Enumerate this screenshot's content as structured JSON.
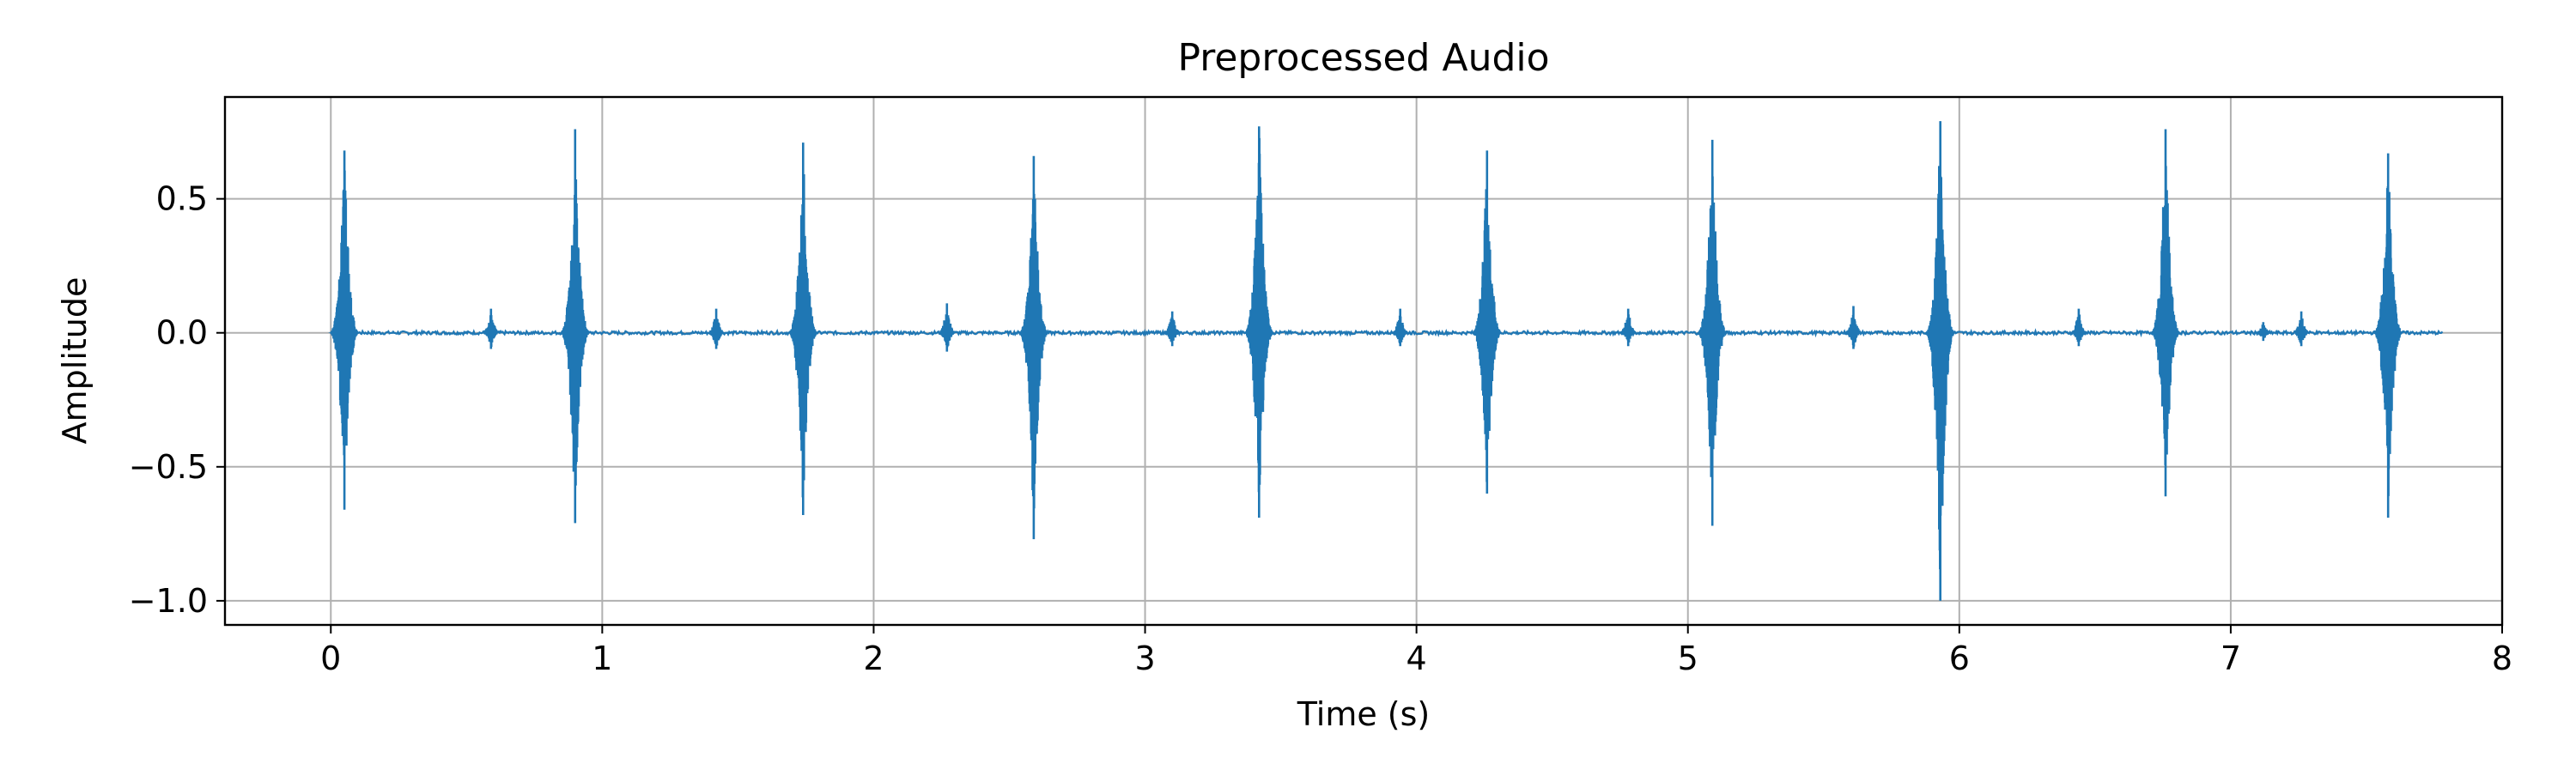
{
  "chart_data": {
    "type": "line",
    "title": "Preprocessed Audio",
    "xlabel": "Time (s)",
    "ylabel": "Amplitude",
    "xlim": [
      -0.39,
      8.0
    ],
    "ylim": [
      -1.09,
      0.88
    ],
    "grid": true,
    "legend": "none",
    "series_color": "#1f77b4",
    "x_ticks": [
      0,
      1,
      2,
      3,
      4,
      5,
      6,
      7,
      8
    ],
    "x_tick_labels": [
      "0",
      "1",
      "2",
      "3",
      "4",
      "5",
      "6",
      "7",
      "8"
    ],
    "y_ticks": [
      0.5,
      0.0,
      -0.5,
      -1.0
    ],
    "y_tick_labels": [
      "0.5",
      "0.0",
      "−0.5",
      "−1.0"
    ],
    "duration": 7.78,
    "series": [
      {
        "description": "large transient peaks (time s, max amplitude, min amplitude)",
        "peaks": [
          {
            "t": 0.05,
            "max": 0.68,
            "min": -0.66
          },
          {
            "t": 0.9,
            "max": 0.76,
            "min": -0.71
          },
          {
            "t": 1.74,
            "max": 0.71,
            "min": -0.68
          },
          {
            "t": 2.59,
            "max": 0.66,
            "min": -0.77
          },
          {
            "t": 3.42,
            "max": 0.77,
            "min": -0.69
          },
          {
            "t": 4.26,
            "max": 0.68,
            "min": -0.6
          },
          {
            "t": 5.09,
            "max": 0.72,
            "min": -0.72
          },
          {
            "t": 5.93,
            "max": 0.79,
            "min": -1.0
          },
          {
            "t": 6.76,
            "max": 0.76,
            "min": -0.61
          },
          {
            "t": 7.58,
            "max": 0.67,
            "min": -0.69
          }
        ],
        "small_peaks": [
          {
            "t": 0.59,
            "max": 0.09,
            "min": -0.06
          },
          {
            "t": 1.42,
            "max": 0.09,
            "min": -0.06
          },
          {
            "t": 2.27,
            "max": 0.11,
            "min": -0.07
          },
          {
            "t": 3.1,
            "max": 0.08,
            "min": -0.05
          },
          {
            "t": 3.94,
            "max": 0.09,
            "min": -0.05
          },
          {
            "t": 4.78,
            "max": 0.09,
            "min": -0.05
          },
          {
            "t": 5.61,
            "max": 0.1,
            "min": -0.06
          },
          {
            "t": 6.44,
            "max": 0.09,
            "min": -0.05
          },
          {
            "t": 7.12,
            "max": 0.04,
            "min": -0.03
          },
          {
            "t": 7.26,
            "max": 0.08,
            "min": -0.05
          }
        ]
      }
    ]
  }
}
